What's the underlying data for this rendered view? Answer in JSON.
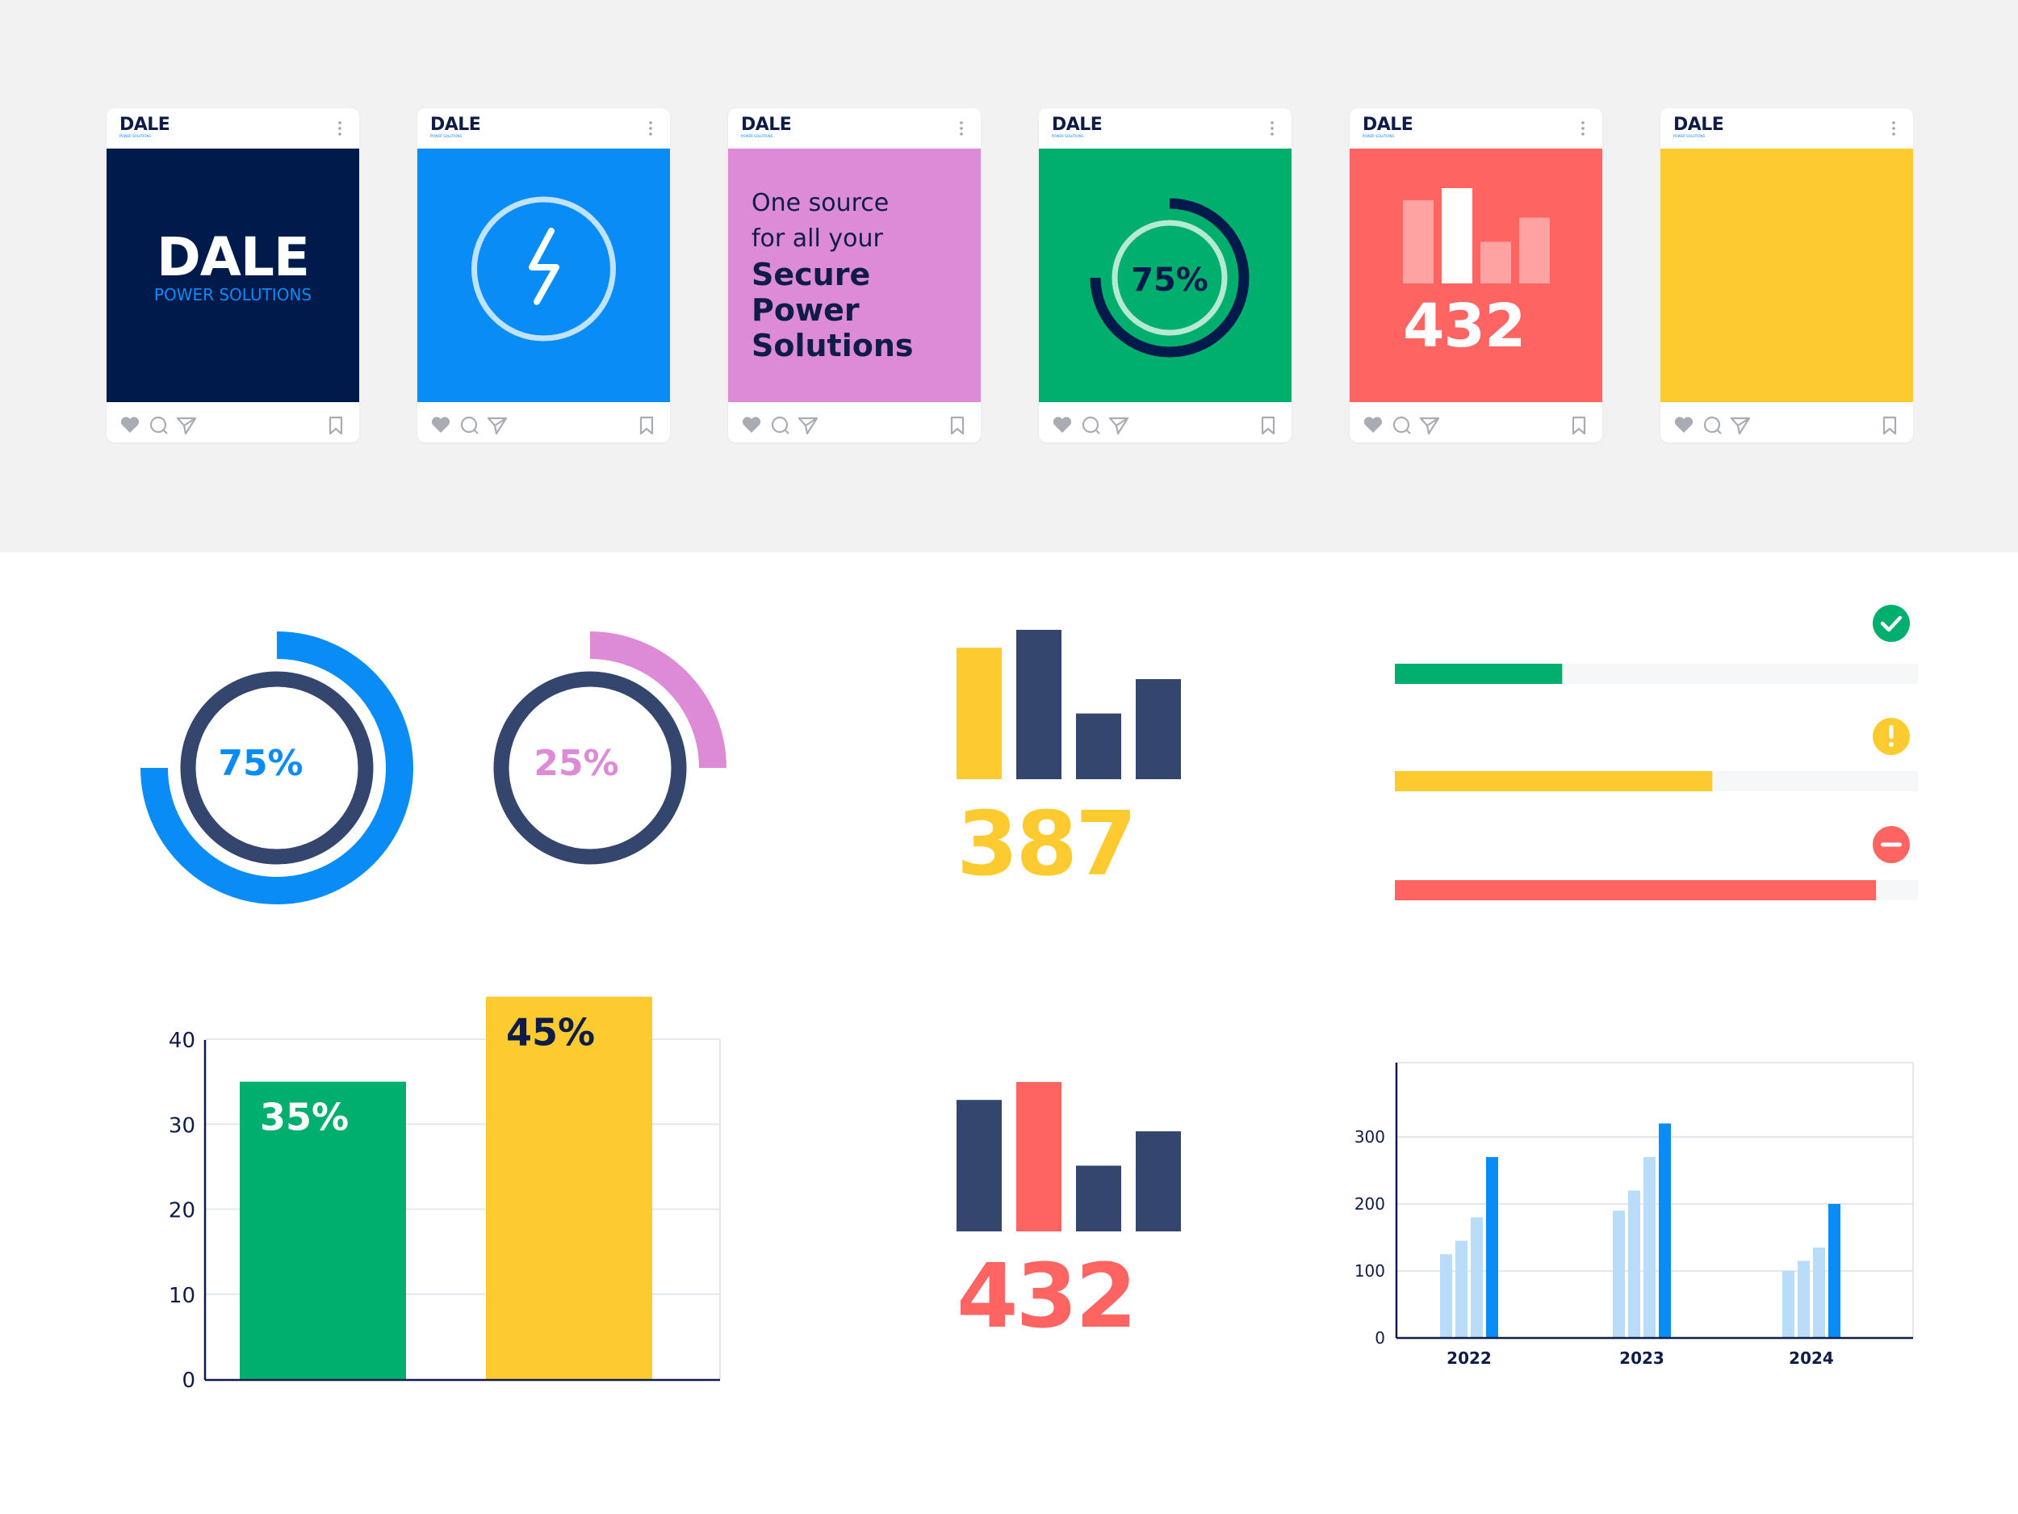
{
  "brand": {
    "name": "DALE",
    "tagline": "POWER SOLUTIONS",
    "colors": {
      "navy": "#001a4c",
      "blue": "#0a8cf7",
      "pink": "#dd8bd6",
      "green": "#00ae6e",
      "red": "#fe6462",
      "yellow": "#fdcb2f",
      "slate": "#34466d"
    }
  },
  "cards": [
    {
      "theme": "navy",
      "content": "brand-logo",
      "header_icon": "more-vertical-icon",
      "footer_icons": [
        "heart-icon",
        "comment-icon",
        "send-icon",
        "bookmark-icon"
      ]
    },
    {
      "theme": "blue",
      "content": "lightning-icon"
    },
    {
      "theme": "pink",
      "content": "text",
      "lines": [
        "One source",
        "for all your",
        "Secure",
        "Power",
        "Solutions"
      ]
    },
    {
      "theme": "green",
      "content": "ring",
      "label": "75%",
      "value": 0.75
    },
    {
      "theme": "red",
      "content": "bars",
      "number": "432",
      "relative_heights": [
        0.62,
        0.71,
        0.31,
        0.49
      ]
    },
    {
      "theme": "yellow",
      "content": "blank"
    }
  ],
  "donuts": [
    {
      "label": "75%",
      "value": 0.75,
      "color": "#0a8cf7"
    },
    {
      "label": "25%",
      "value": 0.25,
      "color": "#dd8bd6"
    }
  ],
  "stat_cards": [
    {
      "number": "387",
      "color": "#fdcb2f",
      "bar_colors": [
        "#fdcb2f",
        "#34466d",
        "#34466d",
        "#34466d"
      ],
      "relative_heights": [
        0.88,
        1.0,
        0.44,
        0.67
      ]
    },
    {
      "number": "432",
      "color": "#fe6462",
      "bar_colors": [
        "#34466d",
        "#fe6462",
        "#34466d",
        "#34466d"
      ],
      "relative_heights": [
        0.88,
        1.0,
        0.44,
        0.67
      ]
    }
  ],
  "progress_bars": [
    {
      "status": "check-icon",
      "value": 0.32,
      "color": "#00ae6e"
    },
    {
      "status": "exclamation-icon",
      "value": 0.607,
      "color": "#fdcb2f"
    },
    {
      "status": "minus-icon",
      "value": 0.92,
      "color": "#fe6462"
    }
  ],
  "chart_data": [
    {
      "type": "bar",
      "categories": [
        "",
        ""
      ],
      "values": [
        35,
        45
      ],
      "data_labels": [
        "35%",
        "45%"
      ],
      "colors": [
        "#00ae6e",
        "#fdcb2f"
      ],
      "yticks": [
        "0",
        "10",
        "20",
        "30",
        "40"
      ],
      "ylim": [
        0,
        40
      ],
      "grid": true
    },
    {
      "type": "bar",
      "categories": [
        "2022",
        "2023",
        "2024"
      ],
      "series": [
        {
          "values": [
            125,
            190,
            100
          ],
          "color": "#b9dcf9"
        },
        {
          "values": [
            145,
            220,
            115
          ],
          "color": "#b9dcf9"
        },
        {
          "values": [
            180,
            270,
            135
          ],
          "color": "#b9dcf9"
        },
        {
          "values": [
            270,
            320,
            200
          ],
          "color": "#0a8cf7"
        }
      ],
      "yticks": [
        "0",
        "100",
        "200",
        "300"
      ],
      "ylim": [
        0,
        400
      ],
      "grid": true
    }
  ]
}
